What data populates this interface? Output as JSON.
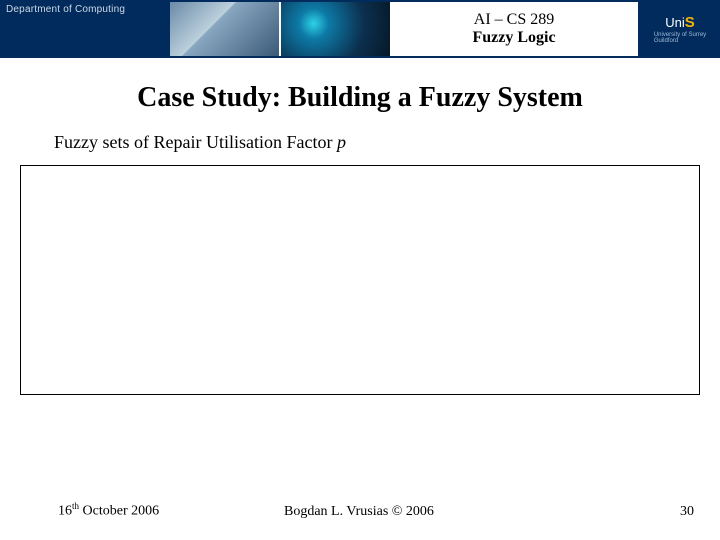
{
  "header": {
    "dept": "Department of Computing",
    "course": "AI – CS 289",
    "subtitle": "Fuzzy Logic",
    "uni_prefix": "Uni",
    "uni_s": "S",
    "uni_full_1": "University of Surrey",
    "uni_full_2": "Guildford",
    "band_color": "#002b5c"
  },
  "title": "Case Study: Building a Fuzzy System",
  "body": {
    "caption_prefix": "Fuzzy sets of Repair Utilisation Factor ",
    "caption_var": "p"
  },
  "chart": {
    "type": "empty-placeholder",
    "border_color": "#000000",
    "background_color": "#ffffff"
  },
  "footer": {
    "date_day": "16",
    "date_ord": "th",
    "date_rest": " October 2006",
    "author": "Bogdan L. Vrusias © 2006",
    "page": "30"
  }
}
